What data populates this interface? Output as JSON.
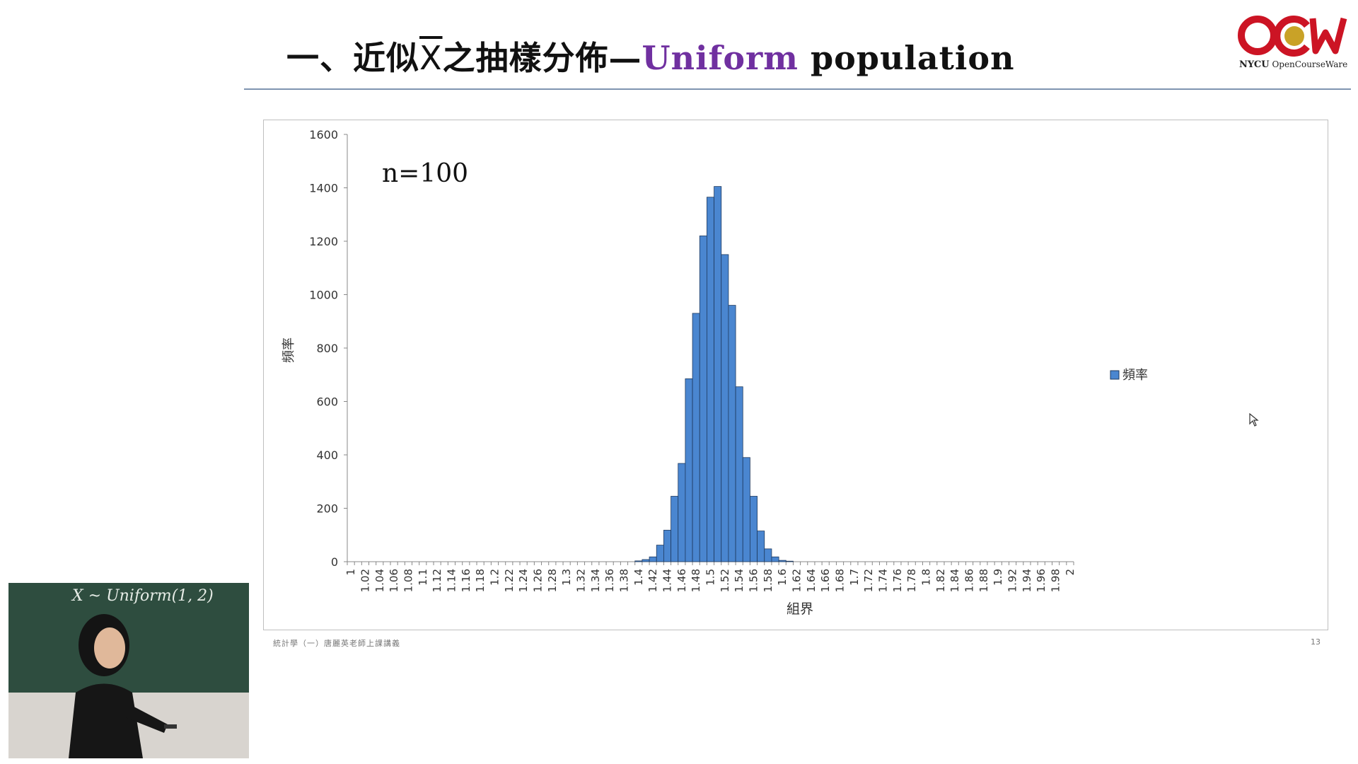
{
  "slide": {
    "title_prefix": "一、近似",
    "title_xbar": "X",
    "title_mid": "之抽樣分佈—",
    "title_colored": "Uniform",
    "title_suffix": " population",
    "accent_color": "#7030a0",
    "footer_left": "統計學（一）唐麗英老師上課講義",
    "page_number": "13"
  },
  "logo": {
    "mark": "ocw-logo",
    "brand": "NYCU",
    "caption": " OpenCourseWare",
    "colors": {
      "red": "#cc1424",
      "gold": "#c9a227"
    }
  },
  "webcam": {
    "board_text": "X ~ Uniform(1, 2)"
  },
  "chart_data": {
    "type": "bar",
    "title": "",
    "annotation": "n=100",
    "xlabel": "組界",
    "ylabel": "頻率",
    "ylim": [
      0,
      1600
    ],
    "yticks": [
      0,
      200,
      400,
      600,
      800,
      1000,
      1200,
      1400,
      1600
    ],
    "legend": {
      "label": "頻率",
      "position": "right"
    },
    "grid": false,
    "bar_color": "#4a86d0",
    "bar_edge": "#1f3a5f",
    "categories": [
      "1",
      "1.01",
      "1.02",
      "1.03",
      "1.04",
      "1.05",
      "1.06",
      "1.07",
      "1.08",
      "1.09",
      "1.1",
      "1.11",
      "1.12",
      "1.13",
      "1.14",
      "1.15",
      "1.16",
      "1.17",
      "1.18",
      "1.19",
      "1.2",
      "1.21",
      "1.22",
      "1.23",
      "1.24",
      "1.25",
      "1.26",
      "1.27",
      "1.28",
      "1.29",
      "1.3",
      "1.31",
      "1.32",
      "1.33",
      "1.34",
      "1.35",
      "1.36",
      "1.37",
      "1.38",
      "1.39",
      "1.4",
      "1.41",
      "1.42",
      "1.43",
      "1.44",
      "1.45",
      "1.46",
      "1.47",
      "1.48",
      "1.49",
      "1.5",
      "1.51",
      "1.52",
      "1.53",
      "1.54",
      "1.55",
      "1.56",
      "1.57",
      "1.58",
      "1.59",
      "1.6",
      "1.61",
      "1.62",
      "1.63",
      "1.64",
      "1.65",
      "1.66",
      "1.67",
      "1.68",
      "1.69",
      "1.7",
      "1.71",
      "1.72",
      "1.73",
      "1.74",
      "1.75",
      "1.76",
      "1.77",
      "1.78",
      "1.79",
      "1.8",
      "1.81",
      "1.82",
      "1.83",
      "1.84",
      "1.85",
      "1.86",
      "1.87",
      "1.88",
      "1.89",
      "1.9",
      "1.91",
      "1.92",
      "1.93",
      "1.94",
      "1.95",
      "1.96",
      "1.97",
      "1.98",
      "1.99",
      "2"
    ],
    "tick_labels": [
      "1",
      "1.02",
      "1.04",
      "1.06",
      "1.08",
      "1.1",
      "1.12",
      "1.14",
      "1.16",
      "1.18",
      "1.2",
      "1.22",
      "1.24",
      "1.26",
      "1.28",
      "1.3",
      "1.32",
      "1.34",
      "1.36",
      "1.38",
      "1.4",
      "1.42",
      "1.44",
      "1.46",
      "1.48",
      "1.5",
      "1.52",
      "1.54",
      "1.56",
      "1.58",
      "1.6",
      "1.62",
      "1.64",
      "1.66",
      "1.68",
      "1.7",
      "1.72",
      "1.74",
      "1.76",
      "1.78",
      "1.8",
      "1.82",
      "1.84",
      "1.86",
      "1.88",
      "1.9",
      "1.92",
      "1.94",
      "1.96",
      "1.98",
      "2"
    ],
    "values": [
      0,
      0,
      0,
      0,
      0,
      0,
      0,
      0,
      0,
      0,
      0,
      0,
      0,
      0,
      0,
      0,
      0,
      0,
      0,
      0,
      0,
      0,
      0,
      0,
      0,
      0,
      0,
      0,
      0,
      0,
      0,
      0,
      0,
      0,
      0,
      0,
      0,
      0,
      0,
      0,
      3,
      8,
      18,
      62,
      118,
      245,
      368,
      685,
      930,
      1220,
      1365,
      1405,
      1150,
      960,
      655,
      390,
      245,
      115,
      48,
      18,
      5,
      2,
      0,
      0,
      0,
      0,
      0,
      0,
      0,
      0,
      0,
      0,
      0,
      0,
      0,
      0,
      0,
      0,
      0,
      0,
      0,
      0,
      0,
      0,
      0,
      0,
      0,
      0,
      0,
      0,
      0,
      0,
      0,
      0,
      0,
      0,
      0,
      0,
      0,
      0,
      0
    ]
  }
}
